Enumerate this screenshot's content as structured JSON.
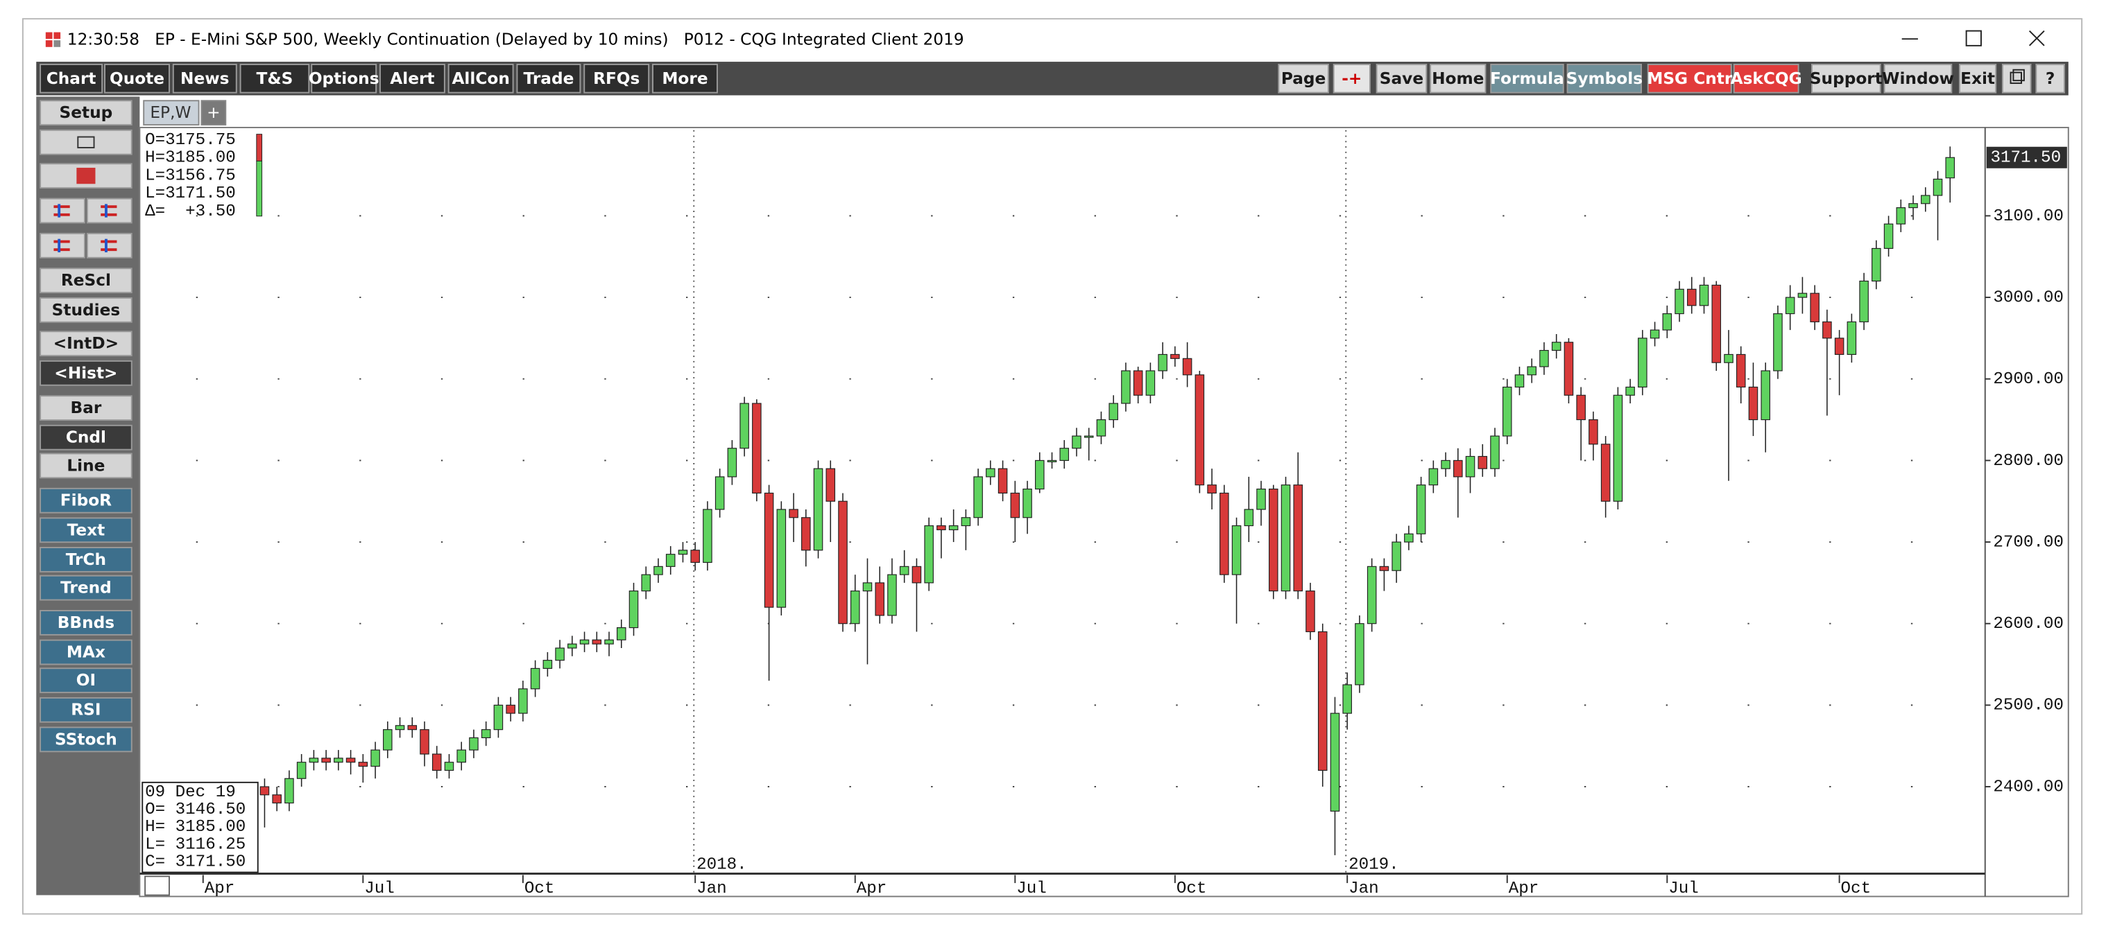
{
  "window": {
    "title": "12:30:58   EP - E-Mini S&P 500, Weekly Continuation (Delayed by 10 mins)   P012 - CQG Integrated Client 2019"
  },
  "toolbar_left": [
    "Chart",
    "Quote",
    "News",
    "T&S",
    "Options",
    "Alert",
    "AllCon",
    "Trade",
    "RFQs",
    "More"
  ],
  "toolbar_right": [
    {
      "label": "Page",
      "bg": "#d9d9d9",
      "fg": "#1a1a1a"
    },
    {
      "label": "-+",
      "bg": "#e6e6e6",
      "fg": "#cc0000"
    },
    {
      "label": "Save",
      "bg": "#d9d9d9",
      "fg": "#1a1a1a"
    },
    {
      "label": "Home",
      "bg": "#d9d9d9",
      "fg": "#1a1a1a"
    },
    {
      "label": "Formula",
      "bg": "#6f8f99",
      "fg": "#ffffff"
    },
    {
      "label": "Symbols",
      "bg": "#6f8f99",
      "fg": "#ffffff"
    },
    {
      "label": "MSG Cntr",
      "bg": "#e23b3b",
      "fg": "#ffffff"
    },
    {
      "label": "AskCQG",
      "bg": "#e23b3b",
      "fg": "#ffffff"
    },
    {
      "label": "Support",
      "bg": "#d9d9d9",
      "fg": "#1a1a1a"
    },
    {
      "label": "Window",
      "bg": "#d9d9d9",
      "fg": "#1a1a1a"
    },
    {
      "label": "Exit",
      "bg": "#d9d9d9",
      "fg": "#1a1a1a"
    },
    {
      "label": "?",
      "bg": "#d9d9d9",
      "fg": "#1a1a1a"
    }
  ],
  "side_buttons": [
    {
      "label": "Setup",
      "bg": "#d4d4d4",
      "fg": "#1a1a1a"
    },
    {
      "label": "ReScl",
      "bg": "#d4d4d4",
      "fg": "#1a1a1a"
    },
    {
      "label": "Studies",
      "bg": "#d4d4d4",
      "fg": "#1a1a1a"
    },
    {
      "label": "<IntD>",
      "bg": "#d4d4d4",
      "fg": "#1a1a1a"
    },
    {
      "label": "<Hist>",
      "bg": "#3a3a3a",
      "fg": "#ffffff"
    },
    {
      "label": "Bar",
      "bg": "#d4d4d4",
      "fg": "#1a1a1a"
    },
    {
      "label": "Cndl",
      "bg": "#3a3a3a",
      "fg": "#ffffff"
    },
    {
      "label": "Line",
      "bg": "#d4d4d4",
      "fg": "#1a1a1a"
    },
    {
      "label": "FiboR",
      "bg": "#3d6f8c",
      "fg": "#ffffff"
    },
    {
      "label": "Text",
      "bg": "#3d6f8c",
      "fg": "#ffffff"
    },
    {
      "label": "TrCh",
      "bg": "#3d6f8c",
      "fg": "#ffffff"
    },
    {
      "label": "Trend",
      "bg": "#3d6f8c",
      "fg": "#ffffff"
    },
    {
      "label": "BBnds",
      "bg": "#3d6f8c",
      "fg": "#ffffff"
    },
    {
      "label": "MAx",
      "bg": "#3d6f8c",
      "fg": "#ffffff"
    },
    {
      "label": "OI",
      "bg": "#3d6f8c",
      "fg": "#ffffff"
    },
    {
      "label": "RSI",
      "bg": "#3d6f8c",
      "fg": "#ffffff"
    },
    {
      "label": "SStoch",
      "bg": "#3d6f8c",
      "fg": "#ffffff"
    }
  ],
  "tabs": [
    "EP,W",
    "+"
  ],
  "chart_data": {
    "type": "candlestick",
    "up_color": "#5fd35f",
    "down_color": "#d83a3a",
    "grid": true,
    "ohlc_box": [
      "O=3175.75",
      "H=3185.00",
      "L=3156.75",
      "L=3171.50",
      "Δ=  +3.50"
    ],
    "info_box": [
      "09 Dec 19",
      "O= 3146.50",
      "H= 3185.00",
      "L= 3116.25",
      "C= 3171.50"
    ],
    "last_price_label": "3171.50",
    "ylim": [
      2295,
      3205
    ],
    "yticks": [
      {
        "value": 2400,
        "label": "2400.00"
      },
      {
        "value": 2500,
        "label": "2500.00"
      },
      {
        "value": 2600,
        "label": "2600.00"
      },
      {
        "value": 2700,
        "label": "2700.00"
      },
      {
        "value": 2800,
        "label": "2800.00"
      },
      {
        "value": 2900,
        "label": "2900.00"
      },
      {
        "value": 3000,
        "label": "3000.00"
      },
      {
        "value": 3100,
        "label": "3100.00"
      }
    ],
    "categories": [
      "Apr",
      null,
      null,
      null,
      null,
      null,
      null,
      null,
      null,
      null,
      null,
      null,
      null,
      "Jul",
      null,
      null,
      null,
      null,
      null,
      null,
      null,
      null,
      null,
      null,
      null,
      null,
      "Oct",
      null,
      null,
      null,
      null,
      null,
      null,
      null,
      null,
      null,
      null,
      null,
      null,
      null,
      "Jan",
      null,
      null,
      null,
      null,
      null,
      null,
      null,
      null,
      null,
      null,
      null,
      null,
      "Apr",
      null,
      null,
      null,
      null,
      null,
      null,
      null,
      null,
      null,
      null,
      null,
      null,
      "Jul",
      null,
      null,
      null,
      null,
      null,
      null,
      null,
      null,
      null,
      null,
      null,
      null,
      "Oct",
      null,
      null,
      null,
      null,
      null,
      null,
      null,
      null,
      null,
      null,
      null,
      null,
      null,
      "Jan",
      null,
      null,
      null,
      null,
      null,
      null,
      null,
      null,
      null,
      null,
      null,
      null,
      "Apr",
      null,
      null,
      null,
      null,
      null,
      null,
      null,
      null,
      null,
      null,
      null,
      null,
      "Jul",
      null,
      null,
      null,
      null,
      null,
      null,
      null,
      null,
      null,
      null,
      null,
      null,
      null,
      "Oct",
      null,
      null,
      null,
      null,
      null,
      null,
      null,
      null,
      null
    ],
    "years": [
      null,
      null,
      null,
      null,
      null,
      null,
      null,
      null,
      null,
      null,
      null,
      null,
      null,
      null,
      null,
      null,
      null,
      null,
      null,
      null,
      null,
      null,
      null,
      null,
      null,
      null,
      null,
      null,
      null,
      null,
      null,
      null,
      null,
      null,
      null,
      null,
      null,
      null,
      null,
      null,
      "2018.",
      null,
      null,
      null,
      null,
      null,
      null,
      null,
      null,
      null,
      null,
      null,
      null,
      null,
      null,
      null,
      null,
      null,
      null,
      null,
      null,
      null,
      null,
      null,
      null,
      null,
      null,
      null,
      null,
      null,
      null,
      null,
      null,
      null,
      null,
      null,
      null,
      null,
      null,
      null,
      null,
      null,
      null,
      null,
      null,
      null,
      null,
      null,
      null,
      null,
      null,
      null,
      null,
      "2019.",
      null,
      null,
      null,
      null,
      null,
      null,
      null,
      null,
      null,
      null,
      null,
      null,
      null,
      null,
      null,
      null,
      null,
      null,
      null,
      null,
      null,
      null,
      null,
      null,
      null,
      null,
      null,
      null,
      null,
      null,
      null,
      null,
      null,
      null,
      null,
      null,
      null,
      null,
      null,
      null,
      null,
      null,
      null,
      null,
      null,
      null,
      null,
      null,
      null
    ],
    "open": [
      null,
      null,
      null,
      null,
      null,
      2400,
      2390,
      2380,
      2410,
      2430,
      2435,
      2430,
      2435,
      2430,
      2425,
      2445,
      2470,
      2475,
      2470,
      2440,
      2420,
      2430,
      2445,
      2460,
      2470,
      2500,
      2490,
      2520,
      2545,
      2555,
      2570,
      2575,
      2580,
      2575,
      2580,
      2595,
      2640,
      2660,
      2670,
      2685,
      2690,
      2675,
      2740,
      2780,
      2815,
      2870,
      2760,
      2620,
      2740,
      2730,
      2690,
      2790,
      2750,
      2600,
      2640,
      2650,
      2610,
      2660,
      2670,
      2650,
      2720,
      2715,
      2720,
      2730,
      2780,
      2790,
      2760,
      2730,
      2765,
      2800,
      2800,
      2815,
      2830,
      2830,
      2850,
      2870,
      2910,
      2880,
      2910,
      2930,
      2925,
      2905,
      2770,
      2760,
      2660,
      2720,
      2740,
      2765,
      2640,
      2770,
      2640,
      2590,
      2370,
      2490,
      2525,
      2600,
      2670,
      2665,
      2700,
      2710,
      2770,
      2790,
      2800,
      2780,
      2805,
      2790,
      2830,
      2890,
      2905,
      2915,
      2935,
      2945,
      2880,
      2850,
      2820,
      2750,
      2880,
      2890,
      2950,
      2960,
      2980,
      3010,
      2990,
      3015,
      2920,
      2930,
      2890,
      2850,
      2910,
      2980,
      3000,
      3005,
      2970,
      2950,
      2930,
      2970,
      3020,
      3060,
      3090,
      3110,
      3115,
      3125,
      3146.5
    ],
    "high": [
      null,
      null,
      null,
      null,
      null,
      2410,
      2400,
      2420,
      2440,
      2445,
      2445,
      2445,
      2445,
      2440,
      2455,
      2480,
      2485,
      2485,
      2480,
      2450,
      2440,
      2455,
      2470,
      2480,
      2510,
      2510,
      2530,
      2555,
      2565,
      2580,
      2585,
      2590,
      2590,
      2590,
      2605,
      2650,
      2670,
      2680,
      2695,
      2700,
      2700,
      2750,
      2790,
      2825,
      2878,
      2875,
      2770,
      2750,
      2760,
      2740,
      2800,
      2800,
      2760,
      2660,
      2680,
      2670,
      2680,
      2690,
      2680,
      2730,
      2730,
      2740,
      2740,
      2790,
      2800,
      2800,
      2775,
      2775,
      2810,
      2810,
      2825,
      2840,
      2840,
      2860,
      2880,
      2920,
      2915,
      2920,
      2945,
      2940,
      2945,
      2910,
      2790,
      2770,
      2730,
      2780,
      2775,
      2770,
      2780,
      2810,
      2650,
      2600,
      2510,
      2540,
      2610,
      2680,
      2680,
      2710,
      2720,
      2780,
      2800,
      2810,
      2815,
      2815,
      2820,
      2840,
      2900,
      2915,
      2925,
      2945,
      2955,
      2950,
      2890,
      2860,
      2830,
      2890,
      2900,
      2960,
      2970,
      2990,
      3020,
      3025,
      3025,
      3020,
      2960,
      2940,
      2920,
      2920,
      2990,
      3015,
      3025,
      3015,
      2985,
      2960,
      2980,
      3030,
      3070,
      3100,
      3120,
      3125,
      3135,
      3155,
      3185
    ],
    "low": [
      null,
      null,
      null,
      null,
      null,
      2350,
      2370,
      2370,
      2400,
      2420,
      2420,
      2420,
      2415,
      2405,
      2410,
      2435,
      2460,
      2460,
      2425,
      2410,
      2410,
      2420,
      2435,
      2450,
      2460,
      2480,
      2480,
      2510,
      2535,
      2545,
      2560,
      2565,
      2565,
      2560,
      2570,
      2585,
      2630,
      2650,
      2660,
      2675,
      2665,
      2665,
      2730,
      2770,
      2805,
      2750,
      2530,
      2610,
      2700,
      2670,
      2680,
      2700,
      2590,
      2590,
      2550,
      2600,
      2600,
      2650,
      2590,
      2640,
      2680,
      2700,
      2690,
      2720,
      2770,
      2750,
      2700,
      2710,
      2760,
      2790,
      2790,
      2805,
      2800,
      2820,
      2840,
      2860,
      2870,
      2870,
      2900,
      2915,
      2890,
      2760,
      2740,
      2650,
      2600,
      2700,
      2720,
      2630,
      2630,
      2630,
      2580,
      2400,
      2316,
      2470,
      2515,
      2590,
      2640,
      2650,
      2690,
      2700,
      2760,
      2780,
      2730,
      2760,
      2780,
      2780,
      2820,
      2880,
      2895,
      2905,
      2925,
      2870,
      2800,
      2800,
      2730,
      2740,
      2870,
      2880,
      2940,
      2950,
      2970,
      2980,
      2980,
      2910,
      2775,
      2870,
      2830,
      2810,
      2900,
      2960,
      2980,
      2960,
      2855,
      2880,
      2920,
      2960,
      3010,
      3050,
      3080,
      3095,
      3105,
      3070,
      3116.25
    ],
    "close": [
      null,
      null,
      null,
      null,
      null,
      2390,
      2380,
      2410,
      2430,
      2435,
      2430,
      2435,
      2430,
      2425,
      2445,
      2470,
      2475,
      2470,
      2440,
      2420,
      2430,
      2445,
      2460,
      2470,
      2500,
      2490,
      2520,
      2545,
      2555,
      2570,
      2575,
      2580,
      2575,
      2580,
      2595,
      2640,
      2660,
      2670,
      2685,
      2690,
      2675,
      2740,
      2780,
      2815,
      2870,
      2760,
      2620,
      2740,
      2730,
      2690,
      2790,
      2750,
      2600,
      2640,
      2650,
      2610,
      2660,
      2670,
      2650,
      2720,
      2715,
      2720,
      2730,
      2780,
      2790,
      2760,
      2730,
      2765,
      2800,
      2800,
      2815,
      2830,
      2830,
      2850,
      2870,
      2910,
      2880,
      2910,
      2930,
      2925,
      2905,
      2770,
      2760,
      2660,
      2720,
      2740,
      2765,
      2640,
      2770,
      2640,
      2590,
      2420,
      2490,
      2525,
      2600,
      2670,
      2665,
      2700,
      2710,
      2770,
      2790,
      2800,
      2780,
      2805,
      2790,
      2830,
      2890,
      2905,
      2915,
      2935,
      2945,
      2880,
      2850,
      2820,
      2750,
      2880,
      2890,
      2950,
      2960,
      2980,
      3010,
      2990,
      3015,
      2920,
      2930,
      2890,
      2850,
      2910,
      2980,
      3000,
      3005,
      2970,
      2950,
      2930,
      2970,
      3020,
      3060,
      3090,
      3110,
      3115,
      3125,
      3145,
      3171.5
    ]
  }
}
